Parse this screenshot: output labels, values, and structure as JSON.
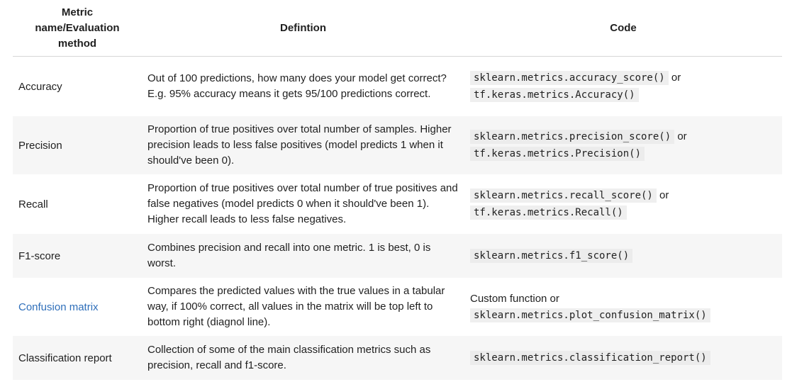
{
  "header": {
    "metric": "Metric name/Evaluation method",
    "definition": "Defintion",
    "code": "Code"
  },
  "rows": [
    {
      "metric": "Accuracy",
      "definition": "Out of 100 predictions, how many does your model get correct? E.g. 95% accuracy means it gets 95/100 predictions correct.",
      "code_prefix": "",
      "code1": "sklearn.metrics.accuracy_score()",
      "code_or": " or",
      "code2": "tf.keras.metrics.Accuracy()"
    },
    {
      "metric": "Precision",
      "definition": "Proportion of true positives over total number of samples. Higher precision leads to less false positives (model predicts 1 when it should've been 0).",
      "code_prefix": "",
      "code1": "sklearn.metrics.precision_score()",
      "code_or": " or",
      "code2": "tf.keras.metrics.Precision()"
    },
    {
      "metric": "Recall",
      "definition": "Proportion of true positives over total number of true positives and false negatives (model predicts 0 when it should've been 1). Higher recall leads to less false negatives.",
      "code_prefix": "",
      "code1": "sklearn.metrics.recall_score()",
      "code_or": " or",
      "code2": "tf.keras.metrics.Recall()"
    },
    {
      "metric": "F1-score",
      "definition": "Combines precision and recall into one metric. 1 is best, 0 is worst.",
      "code_prefix": "",
      "code1": "sklearn.metrics.f1_score()",
      "code_or": "",
      "code2": ""
    },
    {
      "metric": "Confusion matrix",
      "definition": "Compares the predicted values with the true values in a tabular way, if 100% correct, all values in the matrix will be top left to bottom right (diagnol line).",
      "code_prefix": "Custom function or",
      "code1": "sklearn.metrics.plot_confusion_matrix()",
      "code_or": "",
      "code2": ""
    },
    {
      "metric": "Classification report",
      "definition": "Collection of some of the main classification metrics such as precision, recall and f1-score.",
      "code_prefix": "",
      "code1": "sklearn.metrics.classification_report()",
      "code_or": "",
      "code2": ""
    }
  ],
  "colors": {
    "link": "#2f6fba",
    "row_alt_bg": "#f6f6f6",
    "code_bg": "#efefef"
  }
}
